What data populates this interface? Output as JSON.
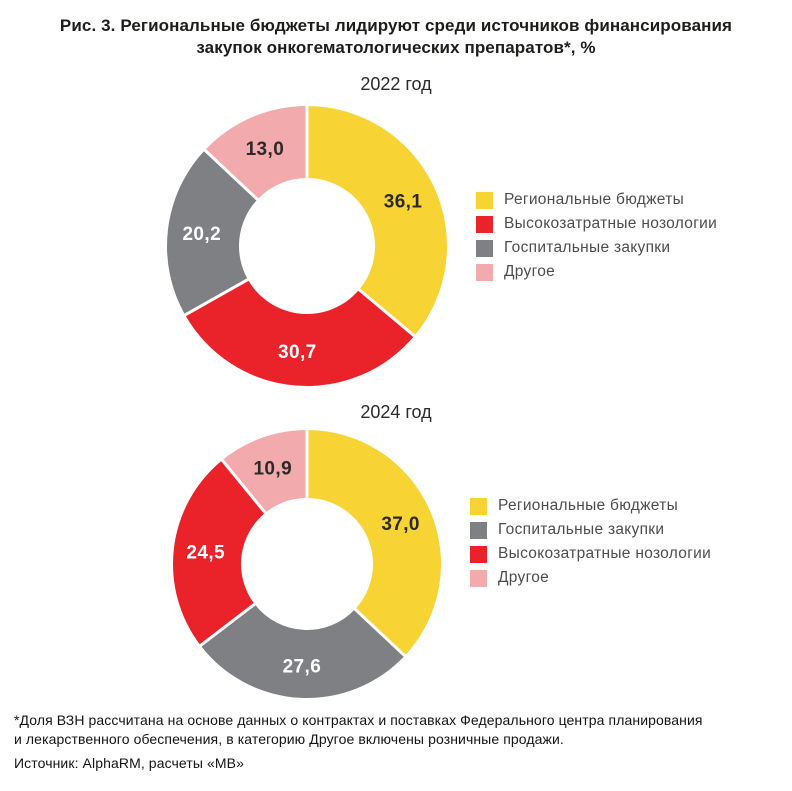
{
  "title": {
    "line1": "Рис. 3. Региональные бюджеты лидируют среди источников финансирования",
    "line2": "закупок онкогематологических препаратов*, %"
  },
  "colors": {
    "regional_budgets": "#F7D334",
    "high_cost_nosologies": "#E92329",
    "hospital_purchases": "#7E8083",
    "other": "#F2AAAD",
    "dark_value_text": "#2B2A29",
    "light_value_text": "#FFFFFF"
  },
  "chart_data": [
    {
      "type": "pie",
      "donut": true,
      "title": "2022 год",
      "labels": [
        "Региональные бюджеты",
        "Высокозатратные нозологии",
        "Госпитальные закупки",
        "Другое"
      ],
      "values": [
        36.1,
        30.7,
        20.2,
        13.0
      ],
      "colors": [
        "#F7D334",
        "#E92329",
        "#7E8083",
        "#F2AAAD"
      ],
      "value_colors": [
        "#2B2A29",
        "#FFFFFF",
        "#FFFFFF",
        "#2B2A29"
      ],
      "start_angle_deg": 0,
      "direction": "clockwise",
      "legend_position": "right",
      "value_label_format": "decimal-comma"
    },
    {
      "type": "pie",
      "donut": true,
      "title": "2024 год",
      "labels": [
        "Региональные бюджеты",
        "Госпитальные закупки",
        "Высокозатратные нозологии",
        "Другое"
      ],
      "values": [
        37.0,
        27.6,
        24.5,
        10.9
      ],
      "colors": [
        "#F7D334",
        "#7E8083",
        "#E92329",
        "#F2AAAD"
      ],
      "value_colors": [
        "#2B2A29",
        "#FFFFFF",
        "#FFFFFF",
        "#2B2A29"
      ],
      "start_angle_deg": 0,
      "direction": "clockwise",
      "legend_position": "right",
      "value_label_format": "decimal-comma"
    }
  ],
  "footnote": {
    "line1": "*Доля ВЗН рассчитана на основе данных о контрактах и поставках Федерального центра планирования",
    "line2": "и лекарственного обеспечения, в категорию Другое включены розничные продажи.",
    "source": "Источник: AlphaRM, расчеты «МВ»"
  }
}
